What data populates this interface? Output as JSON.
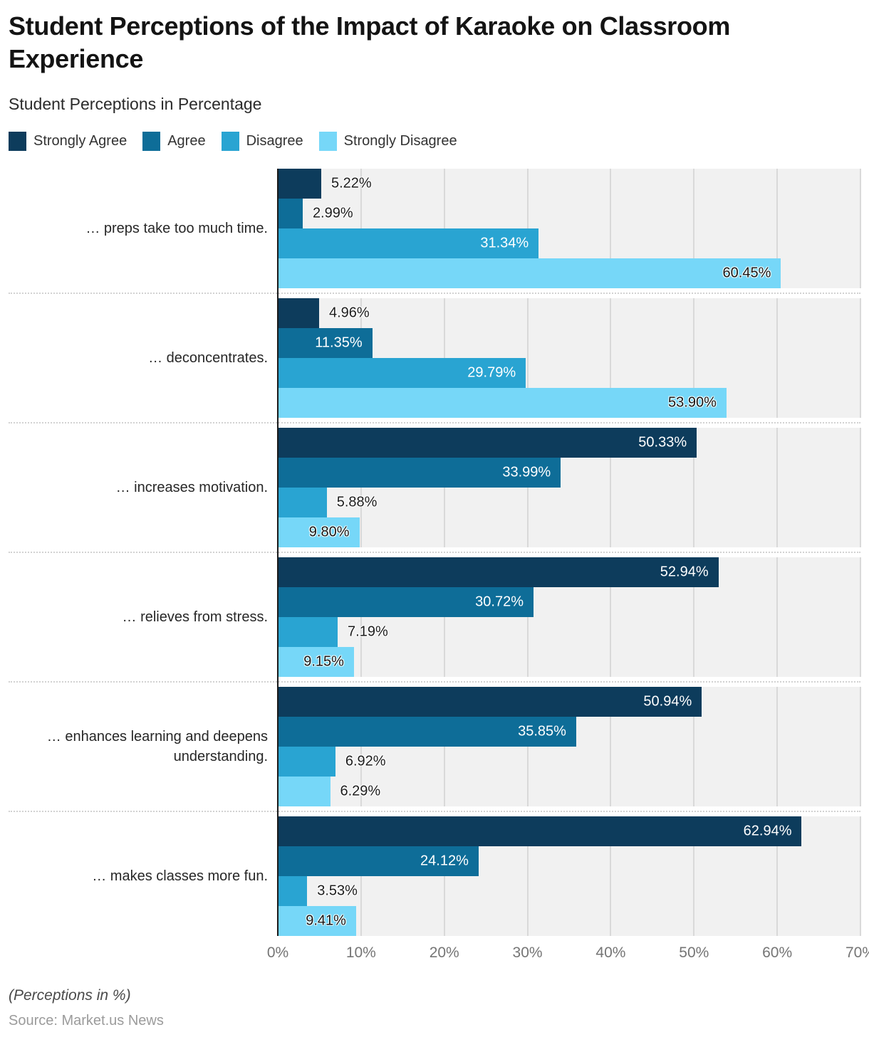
{
  "footer": {
    "note": "(Perceptions in %)",
    "source": "Source: Market.us News"
  },
  "styles": {
    "plot_background": "#f1f1f1",
    "gridline_color": "#d9d9d9",
    "axis_line_color": "#1b1b1b",
    "tick_label_color": "#757575"
  },
  "chart_data": {
    "type": "bar",
    "orientation": "horizontal",
    "title": "Student Perceptions of the Impact of Karaoke on Classroom Experience",
    "subtitle": "Student Perceptions in Percentage",
    "xlabel": "Perceptions in %",
    "ylabel": "",
    "xlim": [
      0,
      70
    ],
    "x_ticks": [
      "0%",
      "10%",
      "20%",
      "30%",
      "40%",
      "50%",
      "60%",
      "70%"
    ],
    "grid": true,
    "legend_position": "top",
    "value_label_format": "0.00%",
    "categories": [
      "… preps take too much time.",
      "… deconcentrates.",
      "… increases motivation.",
      "… relieves from stress.",
      "… enhances learning and deepens understanding.",
      "… makes classes more fun."
    ],
    "series": [
      {
        "name": "Strongly Agree",
        "color": "#0d3c5c",
        "values": [
          5.22,
          4.96,
          50.33,
          52.94,
          50.94,
          62.94
        ]
      },
      {
        "name": "Agree",
        "color": "#0e6d98",
        "values": [
          2.99,
          11.35,
          33.99,
          30.72,
          35.85,
          24.12
        ]
      },
      {
        "name": "Disagree",
        "color": "#29a4d2",
        "values": [
          31.34,
          29.79,
          5.88,
          7.19,
          6.92,
          3.53
        ]
      },
      {
        "name": "Strongly Disagree",
        "color": "#76d7f8",
        "values": [
          60.45,
          53.9,
          9.8,
          9.15,
          6.29,
          9.41
        ]
      }
    ]
  }
}
